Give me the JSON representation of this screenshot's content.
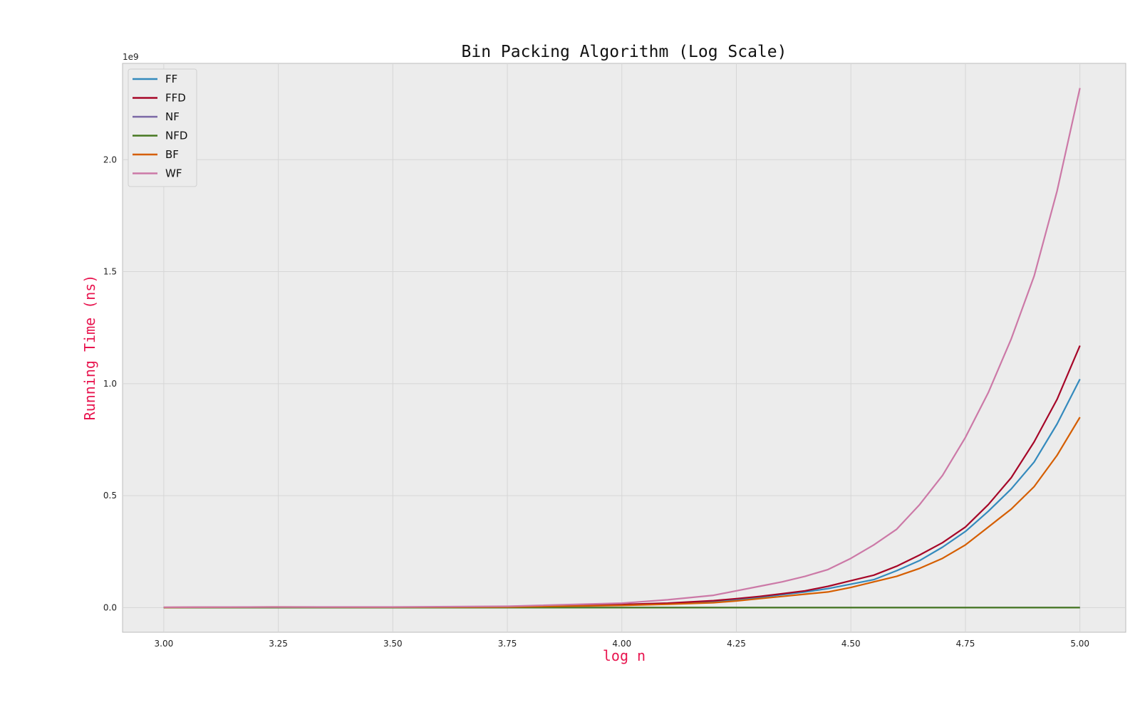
{
  "chart_data": {
    "type": "line",
    "title": "Bin Packing Algorithm (Log Scale)",
    "xlabel": "log n",
    "ylabel": "Running Time (ns)",
    "y_offset_label": "1e9",
    "xlim": [
      2.91,
      5.1
    ],
    "ylim": [
      -0.11,
      2.43
    ],
    "y_scale_factor": 1000000000,
    "xticks": [
      3.0,
      3.25,
      3.5,
      3.75,
      4.0,
      4.25,
      4.5,
      4.75,
      5.0
    ],
    "xtick_labels": [
      "3.00",
      "3.25",
      "3.50",
      "3.75",
      "4.00",
      "4.25",
      "4.50",
      "4.75",
      "5.00"
    ],
    "yticks": [
      0.0,
      0.5,
      1.0,
      1.5,
      2.0
    ],
    "ytick_labels": [
      "0.0",
      "0.5",
      "1.0",
      "1.5",
      "2.0"
    ],
    "grid": true,
    "legend_position": "top-left",
    "background": "#ececec",
    "x": [
      3.0,
      3.25,
      3.5,
      3.75,
      4.0,
      4.1,
      4.2,
      4.25,
      4.3,
      4.35,
      4.4,
      4.45,
      4.5,
      4.55,
      4.6,
      4.65,
      4.7,
      4.75,
      4.8,
      4.85,
      4.9,
      4.95,
      5.0
    ],
    "series": [
      {
        "name": "FF",
        "color": "#348abd",
        "values": [
          0.001,
          0.002,
          0.002,
          0.003,
          0.012,
          0.018,
          0.028,
          0.035,
          0.045,
          0.058,
          0.07,
          0.085,
          0.105,
          0.125,
          0.165,
          0.21,
          0.27,
          0.34,
          0.43,
          0.53,
          0.65,
          0.82,
          1.02
        ]
      },
      {
        "name": "FFD",
        "color": "#a60628",
        "values": [
          0.001,
          0.002,
          0.002,
          0.004,
          0.014,
          0.02,
          0.031,
          0.04,
          0.05,
          0.062,
          0.075,
          0.095,
          0.12,
          0.145,
          0.185,
          0.235,
          0.29,
          0.36,
          0.46,
          0.58,
          0.74,
          0.93,
          1.17
        ]
      },
      {
        "name": "NF",
        "color": "#7a68a6",
        "values": [
          0.0,
          0.0,
          0.0,
          0.0,
          0.0,
          0.0,
          0.0,
          0.0,
          0.0,
          0.0,
          0.0,
          0.0,
          0.0,
          0.0,
          0.0,
          0.0,
          0.0,
          0.0,
          0.0,
          0.0,
          0.0,
          0.0,
          0.0
        ]
      },
      {
        "name": "NFD",
        "color": "#467821",
        "values": [
          0.0,
          0.0,
          0.0,
          0.0,
          0.0,
          0.0,
          0.0,
          0.0,
          0.0,
          0.0,
          0.0,
          0.0,
          0.0,
          0.0,
          0.0,
          0.0,
          0.0,
          0.0,
          0.0,
          0.0,
          0.0,
          0.0,
          0.0
        ]
      },
      {
        "name": "BF",
        "color": "#d55e00",
        "values": [
          0.001,
          0.003,
          0.002,
          0.003,
          0.01,
          0.015,
          0.022,
          0.03,
          0.04,
          0.05,
          0.06,
          0.07,
          0.09,
          0.115,
          0.14,
          0.175,
          0.22,
          0.28,
          0.36,
          0.44,
          0.54,
          0.68,
          0.85
        ]
      },
      {
        "name": "WF",
        "color": "#cc79a7",
        "values": [
          0.002,
          0.003,
          0.003,
          0.006,
          0.02,
          0.035,
          0.055,
          0.075,
          0.095,
          0.115,
          0.14,
          0.17,
          0.22,
          0.28,
          0.35,
          0.46,
          0.59,
          0.76,
          0.96,
          1.2,
          1.48,
          1.86,
          2.32
        ]
      }
    ]
  }
}
